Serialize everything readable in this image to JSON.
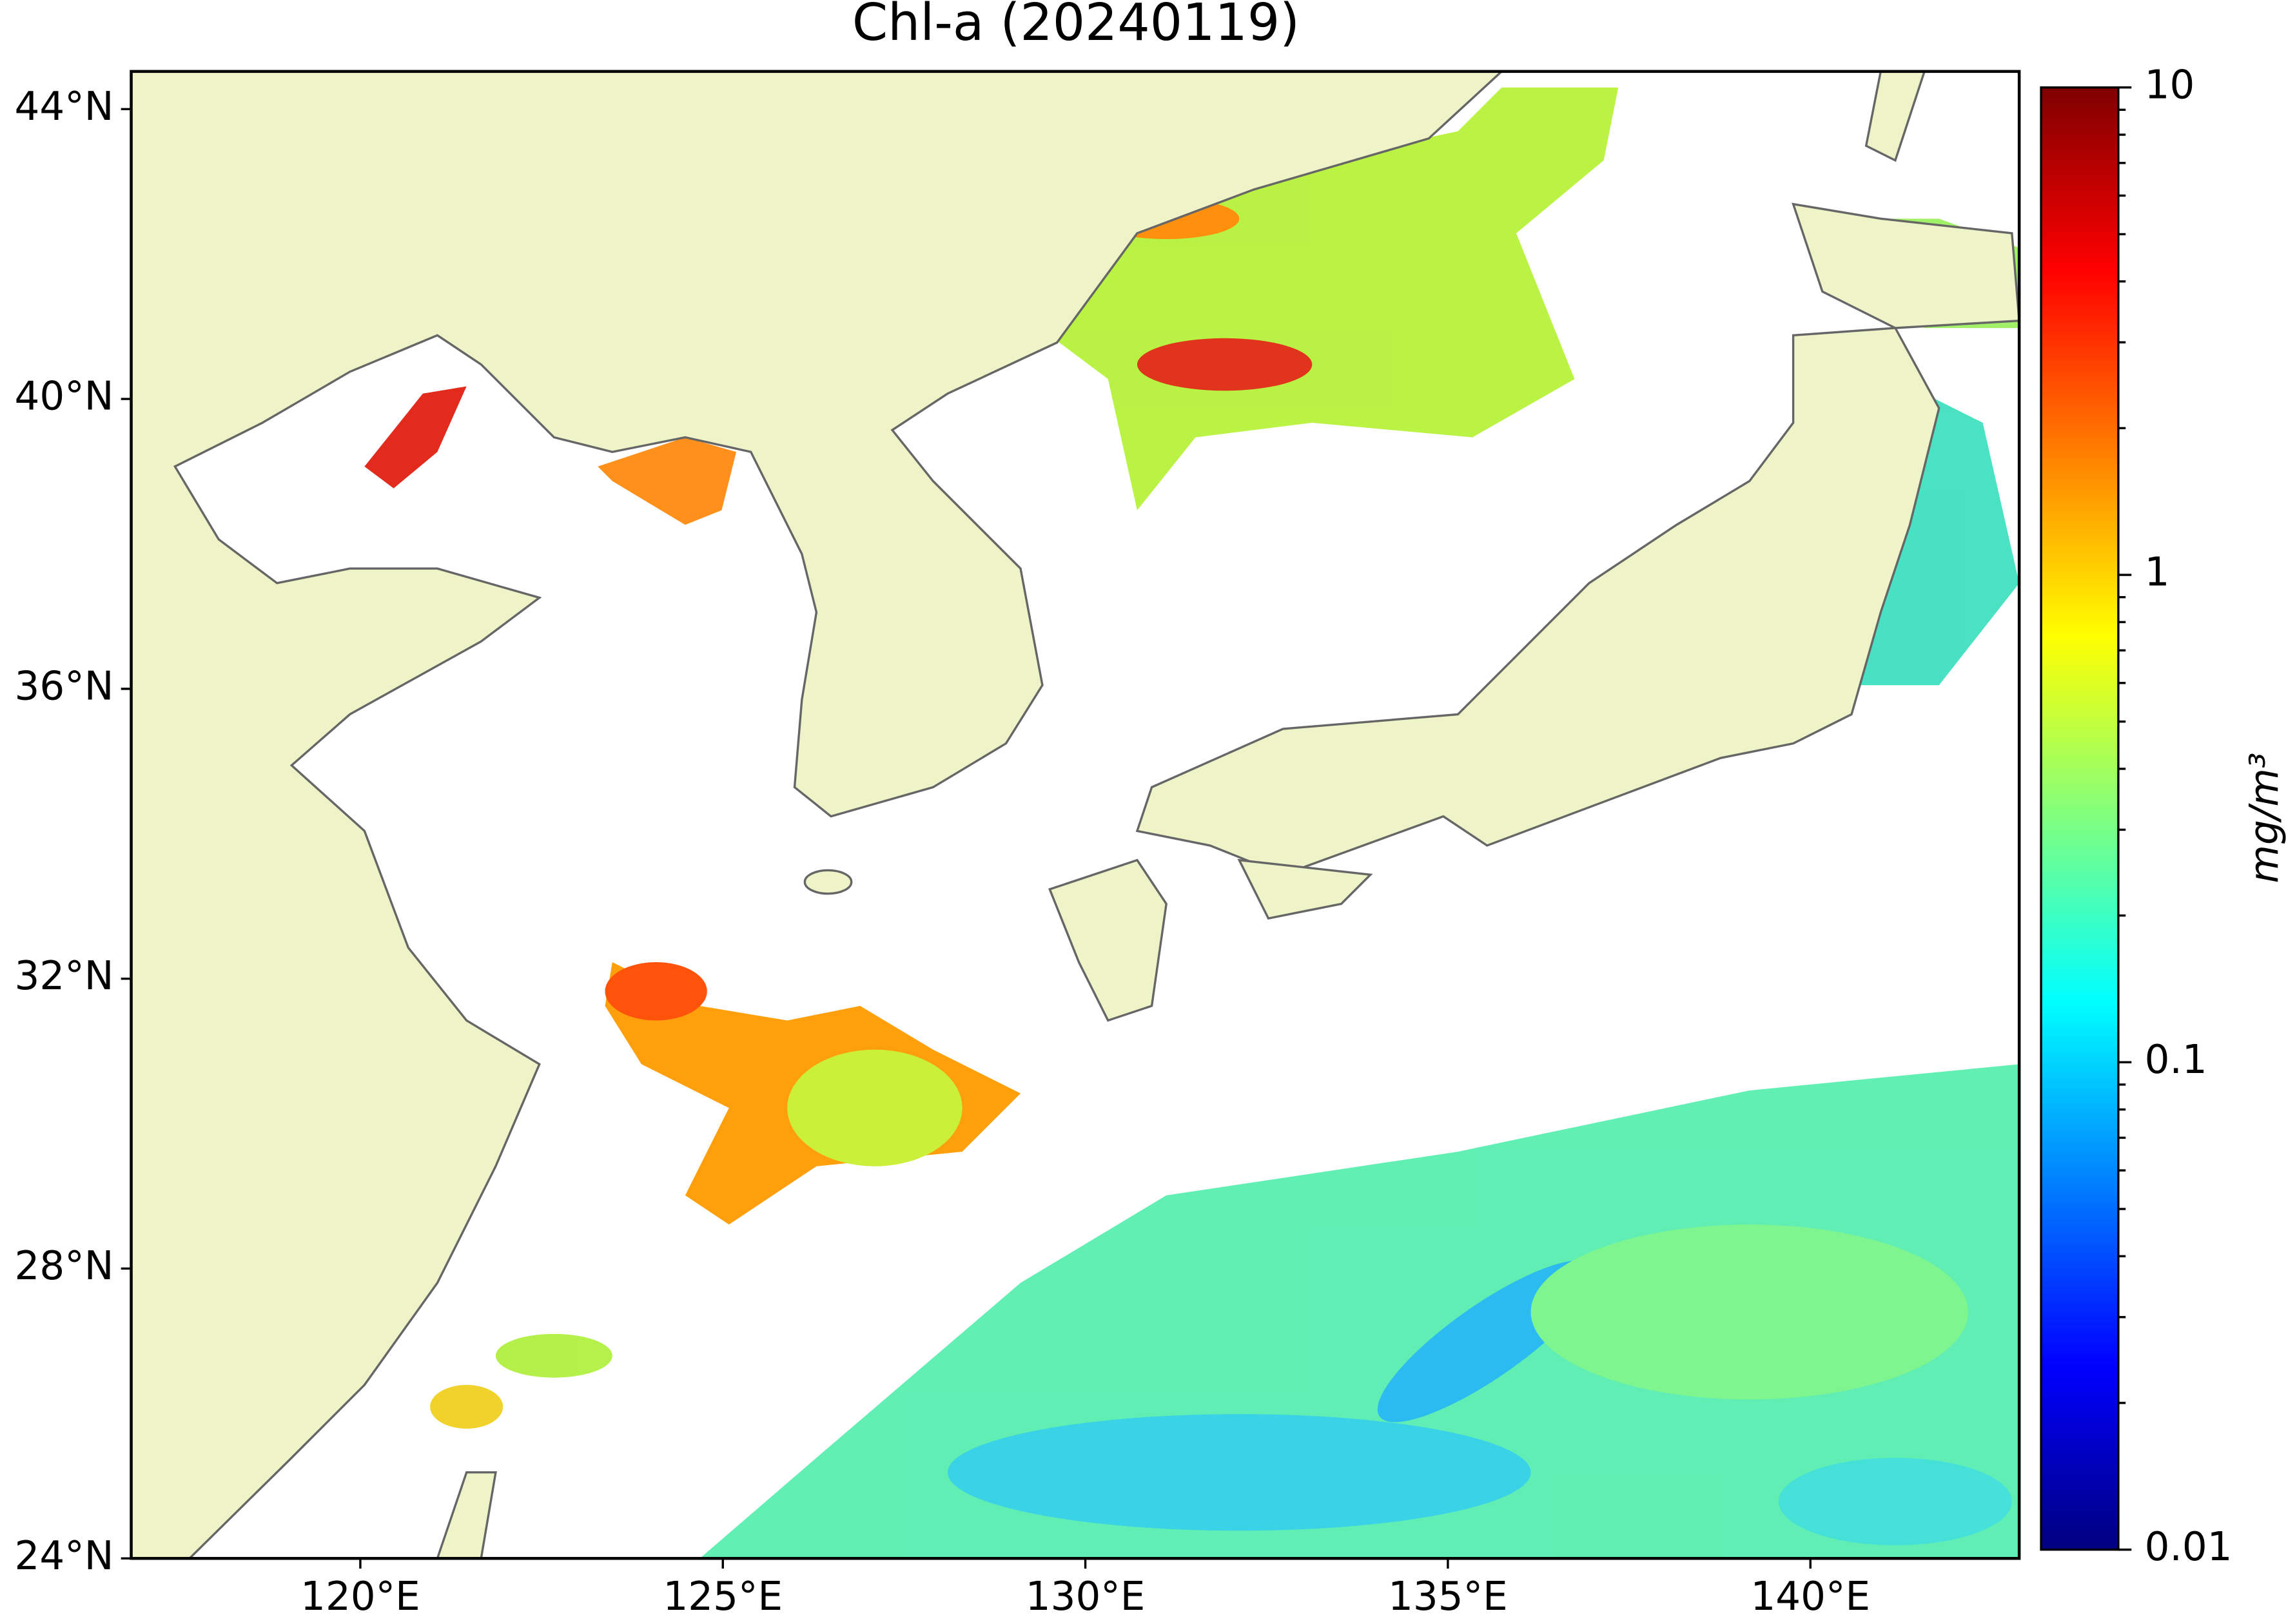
{
  "chart_data": {
    "type": "map",
    "title": "Chl-a (20240119)",
    "xlim": [
      116.84,
      142.88
    ],
    "ylim": [
      24,
      44.52
    ],
    "xticks": [
      {
        "value": 120,
        "label": "120°E"
      },
      {
        "value": 125,
        "label": "125°E"
      },
      {
        "value": 130,
        "label": "130°E"
      },
      {
        "value": 135,
        "label": "135°E"
      },
      {
        "value": 140,
        "label": "140°E"
      }
    ],
    "yticks": [
      {
        "value": 24,
        "label": "24°N"
      },
      {
        "value": 28,
        "label": "28°N"
      },
      {
        "value": 32,
        "label": "32°N"
      },
      {
        "value": 36,
        "label": "36°N"
      },
      {
        "value": 40,
        "label": "40°N"
      },
      {
        "value": 44,
        "label": "44°N"
      }
    ],
    "colorbar": {
      "label": "mg/m³",
      "scale": "log",
      "colormap": "jet",
      "lim": [
        0.01,
        10
      ],
      "ticks": [
        0.01,
        0.1,
        1,
        10
      ]
    }
  }
}
